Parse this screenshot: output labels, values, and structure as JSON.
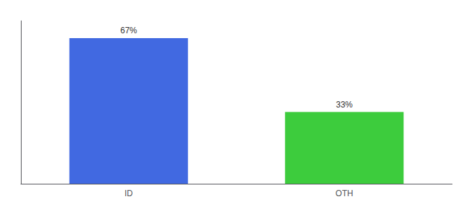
{
  "chart_data": {
    "type": "bar",
    "categories": [
      "ID",
      "OTH"
    ],
    "values": [
      67,
      33
    ],
    "value_labels": [
      "67%",
      "33%"
    ],
    "colors": [
      "#4169e1",
      "#3dcc3d"
    ],
    "ylim": [
      0,
      75
    ],
    "grid": false,
    "data_labels": true,
    "tick_labels": "x"
  }
}
